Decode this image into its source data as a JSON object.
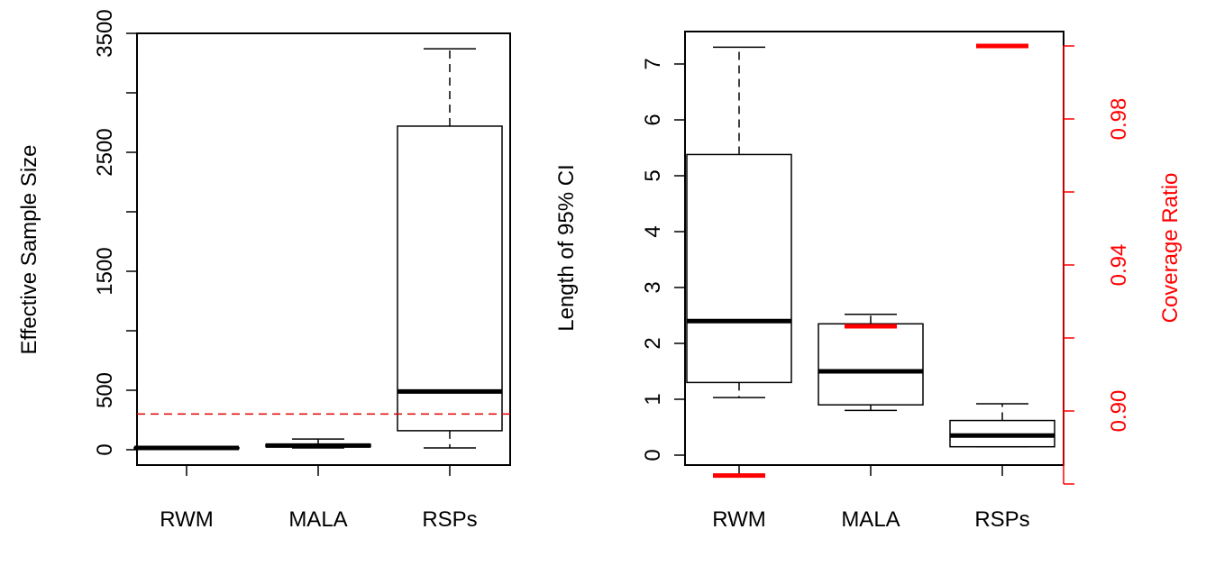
{
  "chart_data": [
    {
      "type": "box",
      "categories": [
        "RWM",
        "MALA",
        "RSPs"
      ],
      "ylabel": "Effective Sample Size",
      "ylim": [
        0,
        3500
      ],
      "yticks": [
        0,
        500,
        1500,
        2500,
        3500
      ],
      "reference_line": {
        "y": 300,
        "color": "#dd0000",
        "style": "dashed"
      },
      "boxes": [
        {
          "whisker_low": 10,
          "q1": 12,
          "median": 15,
          "q3": 18,
          "whisker_high": 20
        },
        {
          "whisker_low": 15,
          "q1": 25,
          "median": 35,
          "q3": 45,
          "whisker_high": 90
        },
        {
          "whisker_low": 15,
          "q1": 160,
          "median": 490,
          "q3": 2720,
          "whisker_high": 3370
        }
      ]
    },
    {
      "type": "box",
      "categories": [
        "RWM",
        "MALA",
        "RSPs"
      ],
      "ylabel": "Length of 95% CI",
      "ylim": [
        0,
        7.3
      ],
      "yticks": [
        0,
        1,
        2,
        3,
        4,
        5,
        6,
        7
      ],
      "boxes": [
        {
          "whisker_low": 1.03,
          "q1": 1.3,
          "median": 2.4,
          "q3": 5.38,
          "whisker_high": 7.3
        },
        {
          "whisker_low": 0.8,
          "q1": 0.9,
          "median": 1.5,
          "q3": 2.35,
          "whisker_high": 2.52
        },
        {
          "whisker_low": 0.15,
          "q1": 0.15,
          "median": 0.35,
          "q3": 0.62,
          "whisker_high": 0.92
        }
      ],
      "secondary_axis": {
        "label": "Coverage Ratio",
        "color": "#ff0000",
        "ylim": [
          0.88,
          1.0
        ],
        "ticks": [
          0.88,
          0.9,
          0.92,
          0.94,
          0.96,
          0.98,
          1.0
        ],
        "tick_labels": [
          "0.90",
          "0.94",
          "0.98"
        ],
        "labeled_ticks": [
          0.9,
          0.94,
          0.98
        ],
        "values": [
          0.8823,
          0.9232,
          1.0
        ]
      }
    }
  ]
}
